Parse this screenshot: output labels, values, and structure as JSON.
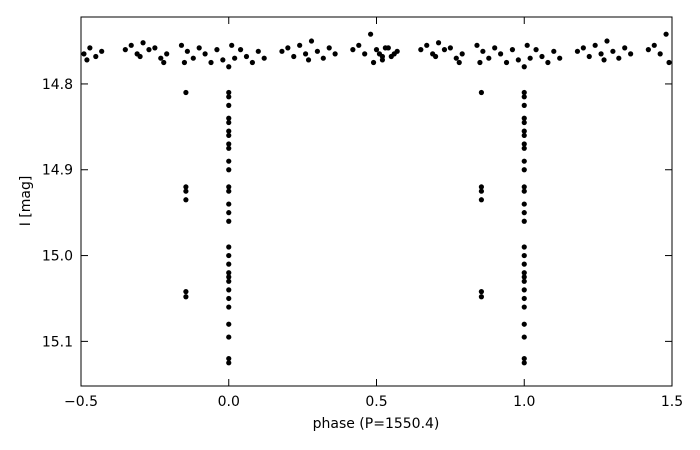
{
  "chart_data": {
    "type": "scatter",
    "xlabel": "phase (P=1550.4)",
    "ylabel": "I [mag]",
    "xlim": [
      -0.5,
      1.5
    ],
    "xticks": [
      {
        "value": -0.5,
        "label": "−0.5"
      },
      {
        "value": 0,
        "label": "0.0"
      },
      0.5,
      {
        "value": 1,
        "label": "1.0"
      },
      1.5
    ],
    "ylim": [
      15.152,
      14.722
    ],
    "y_inverted": true,
    "yticks": [
      14.8,
      14.9,
      {
        "value": 15,
        "label": "15.0"
      },
      15.1
    ],
    "color": "#000000",
    "x": [
      -0.49,
      -0.47,
      -0.45,
      -0.43,
      -0.48,
      -0.35,
      -0.33,
      -0.31,
      -0.29,
      -0.27,
      -0.25,
      -0.23,
      -0.21,
      -0.22,
      -0.3,
      -0.16,
      -0.14,
      -0.12,
      -0.1,
      -0.08,
      -0.06,
      -0.04,
      -0.02,
      0,
      0.02,
      0.04,
      0.06,
      0.08,
      0.1,
      0.12,
      -0.15,
      0.01,
      0.18,
      0.2,
      0.22,
      0.24,
      0.26,
      0.28,
      0.3,
      0.32,
      0.34,
      0.36,
      0.27,
      0.42,
      0.44,
      0.46,
      0.48,
      0.5,
      0.52,
      0.54,
      0.56,
      0.49,
      0,
      0,
      0,
      0,
      0,
      0,
      0,
      0,
      0,
      0,
      0,
      0,
      0,
      0,
      0,
      0,
      0,
      0,
      0,
      0,
      0,
      0,
      0,
      0,
      0,
      0,
      0,
      0,
      0,
      -0.145,
      -0.145,
      -0.145,
      -0.145,
      -0.145,
      -0.145,
      0.51,
      0.53,
      0.55,
      0.57,
      0.52,
      0.65,
      0.67,
      0.69,
      0.71,
      0.73,
      0.75,
      0.77,
      0.79,
      0.78,
      0.7,
      0.84,
      0.86,
      0.88,
      0.9,
      0.92,
      0.94,
      0.96,
      0.98,
      1,
      1.02,
      1.04,
      1.06,
      1.08,
      1.1,
      1.12,
      0.85,
      1.01,
      1.18,
      1.2,
      1.22,
      1.24,
      1.26,
      1.28,
      1.3,
      1.32,
      1.34,
      1.36,
      1.27,
      1.42,
      1.44,
      1.46,
      1.48,
      1.49,
      1,
      1,
      1,
      1,
      1,
      1,
      1,
      1,
      1,
      1,
      1,
      1,
      1,
      1,
      1,
      1,
      1,
      1,
      1,
      1,
      1,
      1,
      1,
      1,
      1,
      1,
      1,
      1,
      1,
      0.855,
      0.855,
      0.855,
      0.855,
      0.855,
      0.855
    ],
    "y": [
      14.765,
      14.758,
      14.768,
      14.762,
      14.772,
      14.76,
      14.755,
      14.765,
      14.752,
      14.76,
      14.758,
      14.77,
      14.765,
      14.775,
      14.768,
      14.755,
      14.762,
      14.77,
      14.758,
      14.765,
      14.775,
      14.76,
      14.772,
      14.78,
      14.77,
      14.76,
      14.768,
      14.775,
      14.762,
      14.77,
      14.775,
      14.755,
      14.762,
      14.758,
      14.768,
      14.755,
      14.765,
      14.75,
      14.762,
      14.77,
      14.758,
      14.765,
      14.772,
      14.76,
      14.755,
      14.765,
      14.742,
      14.76,
      14.768,
      14.758,
      14.765,
      14.775,
      14.81,
      14.815,
      14.825,
      14.84,
      14.845,
      14.855,
      14.86,
      14.87,
      14.875,
      14.89,
      14.9,
      14.92,
      14.925,
      14.94,
      14.95,
      14.96,
      14.99,
      15,
      15.01,
      15.02,
      15.025,
      15.03,
      15.04,
      15.05,
      15.06,
      15.08,
      15.095,
      15.12,
      15.125,
      14.81,
      14.92,
      14.925,
      14.935,
      15.042,
      15.048,
      14.765,
      14.758,
      14.768,
      14.762,
      14.772,
      14.76,
      14.755,
      14.765,
      14.752,
      14.76,
      14.758,
      14.77,
      14.765,
      14.775,
      14.768,
      14.755,
      14.762,
      14.77,
      14.758,
      14.765,
      14.775,
      14.76,
      14.772,
      14.78,
      14.77,
      14.76,
      14.768,
      14.775,
      14.762,
      14.77,
      14.775,
      14.755,
      14.762,
      14.758,
      14.768,
      14.755,
      14.765,
      14.75,
      14.762,
      14.77,
      14.758,
      14.765,
      14.772,
      14.76,
      14.755,
      14.765,
      14.742,
      14.775,
      14.81,
      14.815,
      14.825,
      14.84,
      14.845,
      14.855,
      14.86,
      14.87,
      14.875,
      14.89,
      14.9,
      14.92,
      14.925,
      14.94,
      14.95,
      14.96,
      14.99,
      15,
      15.01,
      15.02,
      15.025,
      15.03,
      15.04,
      15.05,
      15.06,
      15.08,
      15.095,
      15.12,
      15.125,
      14.81,
      14.92,
      14.925,
      14.935,
      15.042,
      15.048
    ]
  }
}
